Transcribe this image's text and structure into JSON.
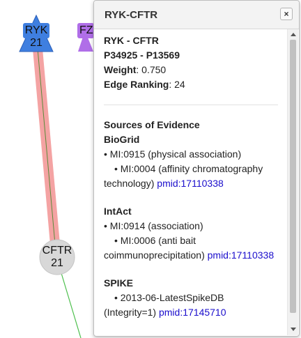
{
  "graph": {
    "nodes": [
      {
        "id": "ryk",
        "name": "RYK",
        "value": "21",
        "color": "#3f7fe0",
        "shape": "triangle-up"
      },
      {
        "id": "fz",
        "name": "FZ",
        "value": "",
        "color": "#b06ee8",
        "shape": "triangle-up"
      },
      {
        "id": "cftr",
        "name": "CFTR",
        "value": "21",
        "color": "#d8d8d8",
        "shape": "circle"
      }
    ],
    "edges": [
      {
        "from": "RYK",
        "to": "CFTR",
        "color": "#f4a3a3",
        "core_color": "#5a8a3a"
      },
      {
        "from": "CFTR",
        "to": "offscreen",
        "color": "#4cbf4c"
      }
    ]
  },
  "popup": {
    "title": "RYK-CFTR",
    "close_label": "×",
    "pair": "RYK - CFTR",
    "accessions": "P34925 - P13569",
    "weight_label": "Weight",
    "weight_value": ": 0.750",
    "ranking_label": "Edge Ranking",
    "ranking_value": ": 24",
    "evidence_heading": "Sources of Evidence",
    "sources": [
      {
        "name": "BioGrid",
        "line1": "•  MI:0915 (physical association)",
        "line2": "•  MI:0004 (affinity chromatography",
        "line3": "technology)",
        "pmid": "pmid:17110338"
      },
      {
        "name": "IntAct",
        "line1": "•  MI:0914 (association)",
        "line2": "•  MI:0006 (anti bait",
        "line3": "coimmunoprecipitation)",
        "pmid": "pmid:17110338"
      },
      {
        "name": "SPIKE",
        "line1": "•  2013-06-LatestSpikeDB",
        "line2": "(Integrity=1)",
        "pmid": "pmid:17145710"
      }
    ]
  }
}
